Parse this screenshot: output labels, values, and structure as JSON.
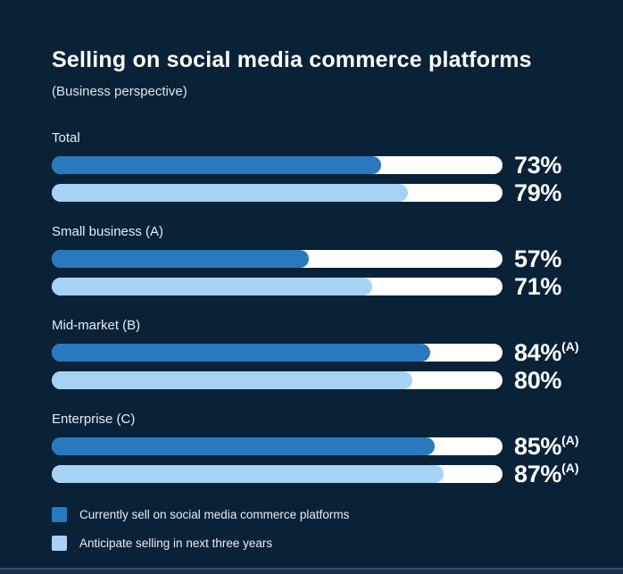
{
  "header": {
    "title": "Selling on social media commerce platforms",
    "subtitle": "(Business perspective)"
  },
  "colors": {
    "background": "#0A2238",
    "bar_track": "#FFFFFF",
    "series_current": "#2879BD",
    "series_anticipate": "#A6D3F4",
    "title_text": "#FFFFFF",
    "label_text": "#E7EDF1",
    "footer_band": "#16314A",
    "footer_line": "#31506C"
  },
  "chart_data": {
    "type": "bar",
    "orientation": "horizontal",
    "title": "Selling on social media commerce platforms",
    "subtitle": "(Business perspective)",
    "unit": "%",
    "xlim": [
      0,
      100
    ],
    "grid": false,
    "legend_position": "bottom-left",
    "categories": [
      "Total",
      "Small business (A)",
      "Mid-market (B)",
      "Enterprise (C)"
    ],
    "series": [
      {
        "name": "Currently sell on social media commerce platforms",
        "color": "#2879BD",
        "values": [
          73,
          57,
          84,
          85
        ],
        "notes": [
          "",
          "",
          "(A)",
          "(A)"
        ]
      },
      {
        "name": "Anticipate selling in next three years",
        "color": "#A6D3F4",
        "values": [
          79,
          71,
          80,
          87
        ],
        "notes": [
          "",
          "",
          "",
          "(A)"
        ]
      }
    ]
  },
  "legend": {
    "items": [
      {
        "label": "Currently sell on social media commerce platforms",
        "color": "#2879BD"
      },
      {
        "label": "Anticipate selling in next three years",
        "color": "#A6D3F4"
      }
    ]
  }
}
